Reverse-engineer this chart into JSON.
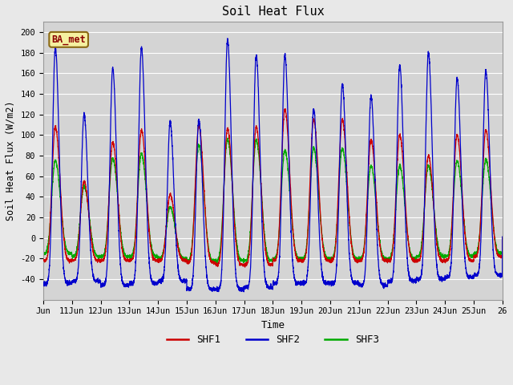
{
  "title": "Soil Heat Flux",
  "xlabel": "Time",
  "ylabel": "Soil Heat Flux (W/m2)",
  "ylim": [
    -60,
    210
  ],
  "yticks": [
    -40,
    -20,
    0,
    20,
    40,
    60,
    80,
    100,
    120,
    140,
    160,
    180,
    200
  ],
  "background_color": "#e8e8e8",
  "plot_bg_color": "#d4d4d4",
  "colors": {
    "SHF1": "#cc0000",
    "SHF2": "#0000cc",
    "SHF3": "#00aa00"
  },
  "legend_label": "BA_met",
  "n_days": 16,
  "points_per_day": 288,
  "shf2_peaks": [
    185,
    120,
    165,
    185,
    113,
    115,
    193,
    178,
    178,
    125,
    150,
    138,
    168,
    180,
    155,
    163
  ],
  "shf1_peaks": [
    108,
    55,
    93,
    105,
    42,
    110,
    106,
    108,
    125,
    115,
    115,
    95,
    100,
    80,
    100,
    105
  ],
  "shf3_peaks": [
    75,
    50,
    77,
    82,
    30,
    90,
    96,
    95,
    85,
    87,
    87,
    70,
    70,
    70,
    75,
    76
  ],
  "shf2_troughs": [
    -44,
    -42,
    -46,
    -44,
    -42,
    -50,
    -50,
    -48,
    -44,
    -44,
    -44,
    -46,
    -42,
    -40,
    -38,
    -36
  ],
  "shf1_troughs": [
    -22,
    -22,
    -22,
    -22,
    -22,
    -24,
    -26,
    -26,
    -22,
    -22,
    -22,
    -22,
    -22,
    -22,
    -22,
    -18
  ],
  "shf3_troughs": [
    -15,
    -18,
    -18,
    -18,
    -20,
    -22,
    -22,
    -22,
    -20,
    -20,
    -20,
    -20,
    -20,
    -18,
    -18,
    -15
  ],
  "xtick_labels": [
    "Jun",
    "11Jun",
    "12Jun",
    "13Jun",
    "14Jun",
    "15Jun",
    "16Jun",
    "17Jun",
    "18Jun",
    "19Jun",
    "20Jun",
    "21Jun",
    "22Jun",
    "23Jun",
    "24Jun",
    "25Jun",
    "26"
  ],
  "shf2_power": 4.0,
  "shf1_power": 2.5,
  "shf3_power": 2.2,
  "peak_time": 0.42,
  "font_family": "DejaVu Sans Mono"
}
